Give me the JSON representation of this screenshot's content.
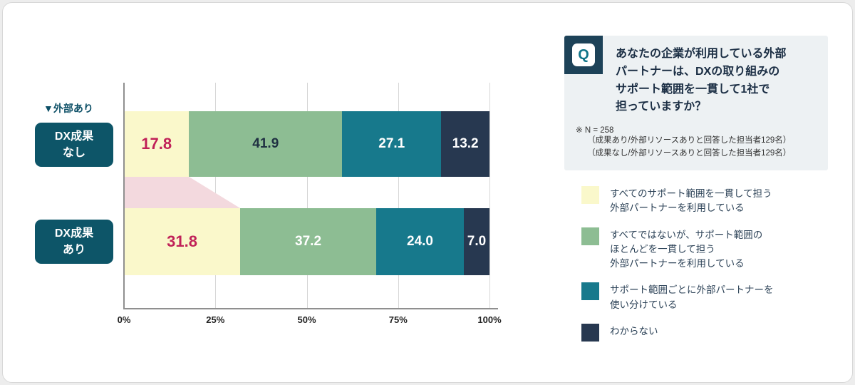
{
  "header": {
    "group_label": "▼外部あり"
  },
  "rows": [
    {
      "label": "DX成果\nなし"
    },
    {
      "label": "DX成果\nあり"
    }
  ],
  "chart_data": {
    "type": "bar",
    "subtype": "stacked-horizontal",
    "categories": [
      "DX成果なし",
      "DX成果あり"
    ],
    "series": [
      {
        "name": "すべてのサポート範囲を一貫して担う外部パートナーを利用している",
        "values": [
          17.8,
          31.8
        ],
        "color": "#faf8cb",
        "text_colors": [
          "#c02158",
          "#c02158"
        ],
        "emphasis": true
      },
      {
        "name": "すべてではないが、サポート範囲のほとんどを一貫して担う外部パートナーを利用している",
        "values": [
          41.9,
          37.2
        ],
        "color": "#8dbd93",
        "text_colors": [
          "#1f3042",
          "#ffffff"
        ],
        "emphasis": false
      },
      {
        "name": "サポート範囲ごとに外部パートナーを使い分けている",
        "values": [
          27.1,
          24.0
        ],
        "color": "#17798c",
        "text_colors": [
          "#ffffff",
          "#ffffff"
        ],
        "emphasis": false
      },
      {
        "name": "わからない",
        "values": [
          13.2,
          7.0
        ],
        "color": "#273850",
        "text_colors": [
          "#ffffff",
          "#ffffff"
        ],
        "emphasis": false
      }
    ],
    "x_ticks": [
      "0%",
      "25%",
      "50%",
      "75%",
      "100%"
    ],
    "xlim": [
      0,
      100
    ],
    "grid": true,
    "legend_position": "right",
    "connector": {
      "from": 17.8,
      "to": 31.8,
      "color": "#f3d9de"
    }
  },
  "question": {
    "icon": "Q",
    "text": "あなたの企業が利用している外部\nパートナーは、DXの取り組みの\nサポート範囲を一貫して1社で\n担っていますか？",
    "note_head": "※ N = 258",
    "note_detail": "（成果あり/外部リソースありと回答した担当者129名）\n（成果なし/外部リソースありと回答した担当者129名）"
  },
  "legend": {
    "items": [
      {
        "color": "#faf8cb",
        "text": "すべてのサポート範囲を一貫して担う\n外部パートナーを利用している"
      },
      {
        "color": "#8dbd93",
        "text": "すべてではないが、サポート範囲の\nほとんどを一貫して担う\n外部パートナーを利用している"
      },
      {
        "color": "#17798c",
        "text": "サポート範囲ごとに外部パートナーを\n使い分けている"
      },
      {
        "color": "#273850",
        "text": "わからない"
      }
    ]
  }
}
